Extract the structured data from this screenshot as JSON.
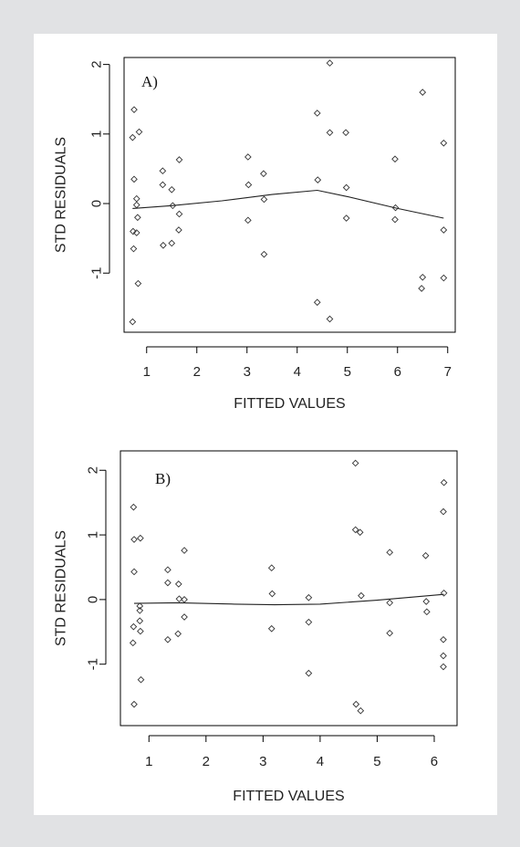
{
  "chart_data": [
    {
      "type": "scatter",
      "title": "A)",
      "xlabel": "FITTED VALUES",
      "ylabel": "STD RESIDUALS",
      "xlim": [
        0.55,
        7.15
      ],
      "ylim": [
        -1.85,
        2.1
      ],
      "xticks": [
        1,
        2,
        3,
        4,
        5,
        6,
        7
      ],
      "yticks": [
        -1,
        0,
        1,
        2
      ],
      "grid": false,
      "points": [
        {
          "x": 0.72,
          "y": -1.7
        },
        {
          "x": 0.74,
          "y": -0.65
        },
        {
          "x": 0.73,
          "y": -0.4
        },
        {
          "x": 0.75,
          "y": 0.35
        },
        {
          "x": 0.72,
          "y": 0.95
        },
        {
          "x": 0.75,
          "y": 1.35
        },
        {
          "x": 0.8,
          "y": 0.07
        },
        {
          "x": 0.8,
          "y": -0.02
        },
        {
          "x": 0.82,
          "y": -0.2
        },
        {
          "x": 0.8,
          "y": -0.42
        },
        {
          "x": 0.83,
          "y": -1.15
        },
        {
          "x": 0.85,
          "y": 1.03
        },
        {
          "x": 1.32,
          "y": 0.47
        },
        {
          "x": 1.32,
          "y": 0.27
        },
        {
          "x": 1.33,
          "y": -0.6
        },
        {
          "x": 1.5,
          "y": 0.2
        },
        {
          "x": 1.52,
          "y": -0.03
        },
        {
          "x": 1.5,
          "y": -0.57
        },
        {
          "x": 1.65,
          "y": 0.63
        },
        {
          "x": 1.65,
          "y": -0.15
        },
        {
          "x": 1.64,
          "y": -0.38
        },
        {
          "x": 3.02,
          "y": 0.67
        },
        {
          "x": 3.03,
          "y": 0.27
        },
        {
          "x": 3.02,
          "y": -0.24
        },
        {
          "x": 3.33,
          "y": 0.43
        },
        {
          "x": 3.34,
          "y": 0.06
        },
        {
          "x": 3.34,
          "y": -0.73
        },
        {
          "x": 4.4,
          "y": 1.3
        },
        {
          "x": 4.41,
          "y": 0.34
        },
        {
          "x": 4.4,
          "y": -1.42
        },
        {
          "x": 4.65,
          "y": 2.02
        },
        {
          "x": 4.65,
          "y": 1.02
        },
        {
          "x": 4.65,
          "y": -1.66
        },
        {
          "x": 4.97,
          "y": 1.02
        },
        {
          "x": 4.98,
          "y": 0.23
        },
        {
          "x": 4.98,
          "y": -0.21
        },
        {
          "x": 5.95,
          "y": 0.64
        },
        {
          "x": 5.96,
          "y": -0.06
        },
        {
          "x": 5.95,
          "y": -0.23
        },
        {
          "x": 6.5,
          "y": 1.6
        },
        {
          "x": 6.5,
          "y": -1.06
        },
        {
          "x": 6.48,
          "y": -1.22
        },
        {
          "x": 6.92,
          "y": 0.87
        },
        {
          "x": 6.92,
          "y": -0.38
        },
        {
          "x": 6.92,
          "y": -1.07
        }
      ],
      "smooth_line": [
        {
          "x": 0.72,
          "y": -0.07
        },
        {
          "x": 1.5,
          "y": -0.03
        },
        {
          "x": 2.5,
          "y": 0.04
        },
        {
          "x": 3.5,
          "y": 0.13
        },
        {
          "x": 4.4,
          "y": 0.19
        },
        {
          "x": 5.0,
          "y": 0.1
        },
        {
          "x": 6.0,
          "y": -0.07
        },
        {
          "x": 6.92,
          "y": -0.21
        }
      ]
    },
    {
      "type": "scatter",
      "title": "B)",
      "xlabel": "FITTED VALUES",
      "ylabel": "STD RESIDUALS",
      "xlim": [
        0.5,
        6.4
      ],
      "ylim": [
        -1.95,
        2.3
      ],
      "xticks": [
        1,
        2,
        3,
        4,
        5,
        6
      ],
      "yticks": [
        -1,
        0,
        1,
        2
      ],
      "grid": false,
      "points": [
        {
          "x": 0.74,
          "y": -1.62
        },
        {
          "x": 0.72,
          "y": -0.67
        },
        {
          "x": 0.73,
          "y": -0.42
        },
        {
          "x": 0.74,
          "y": 0.43
        },
        {
          "x": 0.74,
          "y": 0.93
        },
        {
          "x": 0.73,
          "y": 1.43
        },
        {
          "x": 0.84,
          "y": -0.1
        },
        {
          "x": 0.84,
          "y": -0.17
        },
        {
          "x": 0.84,
          "y": -0.33
        },
        {
          "x": 0.85,
          "y": -0.49
        },
        {
          "x": 0.86,
          "y": -1.24
        },
        {
          "x": 0.85,
          "y": 0.95
        },
        {
          "x": 1.33,
          "y": 0.46
        },
        {
          "x": 1.33,
          "y": 0.26
        },
        {
          "x": 1.33,
          "y": -0.62
        },
        {
          "x": 1.52,
          "y": 0.24
        },
        {
          "x": 1.53,
          "y": 0.01
        },
        {
          "x": 1.51,
          "y": -0.53
        },
        {
          "x": 1.62,
          "y": 0.76
        },
        {
          "x": 1.62,
          "y": 0.0
        },
        {
          "x": 1.62,
          "y": -0.27
        },
        {
          "x": 3.15,
          "y": 0.49
        },
        {
          "x": 3.16,
          "y": 0.09
        },
        {
          "x": 3.15,
          "y": -0.45
        },
        {
          "x": 3.8,
          "y": 0.03
        },
        {
          "x": 3.8,
          "y": -0.35
        },
        {
          "x": 3.8,
          "y": -1.14
        },
        {
          "x": 4.62,
          "y": 2.11
        },
        {
          "x": 4.62,
          "y": 1.08
        },
        {
          "x": 4.7,
          "y": 1.04
        },
        {
          "x": 4.72,
          "y": 0.06
        },
        {
          "x": 4.63,
          "y": -1.62
        },
        {
          "x": 4.71,
          "y": -1.72
        },
        {
          "x": 5.22,
          "y": 0.73
        },
        {
          "x": 5.22,
          "y": -0.05
        },
        {
          "x": 5.22,
          "y": -0.52
        },
        {
          "x": 5.85,
          "y": 0.68
        },
        {
          "x": 5.86,
          "y": -0.03
        },
        {
          "x": 5.87,
          "y": -0.19
        },
        {
          "x": 6.17,
          "y": 1.81
        },
        {
          "x": 6.16,
          "y": 1.36
        },
        {
          "x": 6.17,
          "y": 0.1
        },
        {
          "x": 6.16,
          "y": -0.62
        },
        {
          "x": 6.16,
          "y": -0.87
        },
        {
          "x": 6.16,
          "y": -1.04
        }
      ],
      "smooth_line": [
        {
          "x": 0.74,
          "y": -0.06
        },
        {
          "x": 1.5,
          "y": -0.05
        },
        {
          "x": 2.5,
          "y": -0.07
        },
        {
          "x": 3.2,
          "y": -0.08
        },
        {
          "x": 4.0,
          "y": -0.07
        },
        {
          "x": 5.0,
          "y": -0.01
        },
        {
          "x": 6.17,
          "y": 0.08
        }
      ]
    }
  ]
}
